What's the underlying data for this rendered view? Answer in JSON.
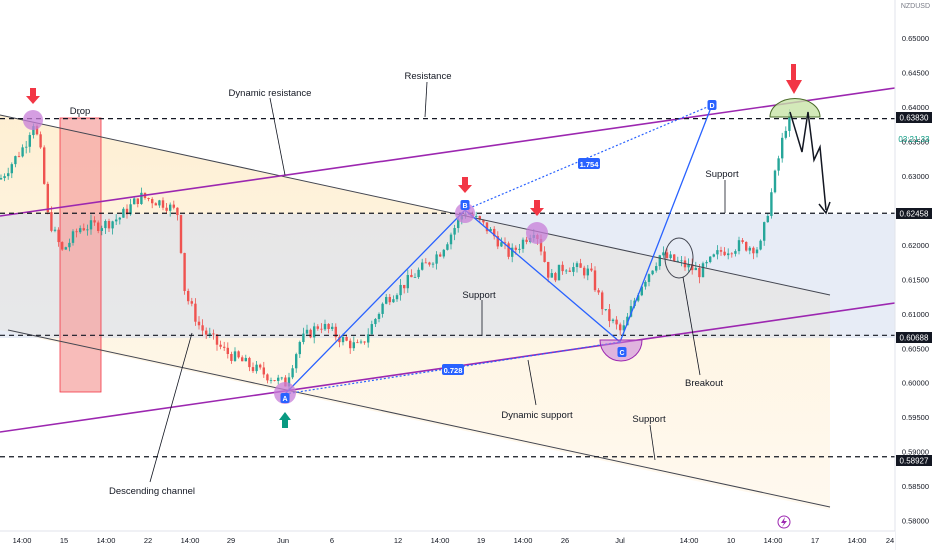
{
  "chart_data": {
    "type": "candlestick",
    "title": "",
    "y_axis": {
      "ticks": [
        "0.65000",
        "0.64500",
        "0.64000",
        "0.63500",
        "0.63000",
        "0.62500",
        "0.62000",
        "0.61500",
        "0.61000",
        "0.60500",
        "0.60000",
        "0.59500",
        "0.59000",
        "0.58500",
        "0.58000"
      ],
      "ylim": [
        0.5785,
        0.6555
      ],
      "currency_label": "NZDUSD",
      "tag_value_top": "0.63830",
      "tag_countdown": "03:21:33",
      "tag_value_mid": "0.62458",
      "tag_value_low1": "0.60688",
      "tag_value_low2": "0.58927"
    },
    "x_axis": {
      "ticks": [
        "14:00",
        "15",
        "14:00",
        "22",
        "14:00",
        "29",
        "Jun",
        "6",
        "12",
        "14:00",
        "19",
        "14:00",
        "26",
        "Jul",
        "14:00",
        "10",
        "14:00",
        "17",
        "14:00",
        "24"
      ]
    },
    "levels": [
      {
        "name": "Resistance",
        "value": 0.6383
      },
      {
        "name": "Support",
        "value": 0.62458
      },
      {
        "name": "Support",
        "value": 0.60688
      },
      {
        "name": "Support",
        "value": 0.58927
      }
    ],
    "wave_points": [
      {
        "label": "A",
        "value": 0.5995
      },
      {
        "label": "B",
        "value": 0.6255
      },
      {
        "label": "C",
        "value": 0.6065
      },
      {
        "label": "D",
        "value": 0.6383
      }
    ],
    "ratios": {
      "lower": "0.728",
      "upper": "1.754"
    },
    "annotations": {
      "drop": "Drop",
      "dynamic_resistance": "Dynamic resistance",
      "resistance": "Resistance",
      "support_right": "Support",
      "support_mid": "Support",
      "dynamic_support": "Dynamic support",
      "support_low": "Support",
      "breakout": "Breakout",
      "descending_channel": "Descending channel"
    },
    "legend": "none",
    "grid": false,
    "colors": {
      "bull": "#26a69a",
      "bear": "#ef5350",
      "trendline_purple": "#9c27b0",
      "channel": "#434651",
      "wave": "#2962ff",
      "arrow_red": "#f23645",
      "arrow_green": "#089981"
    }
  }
}
